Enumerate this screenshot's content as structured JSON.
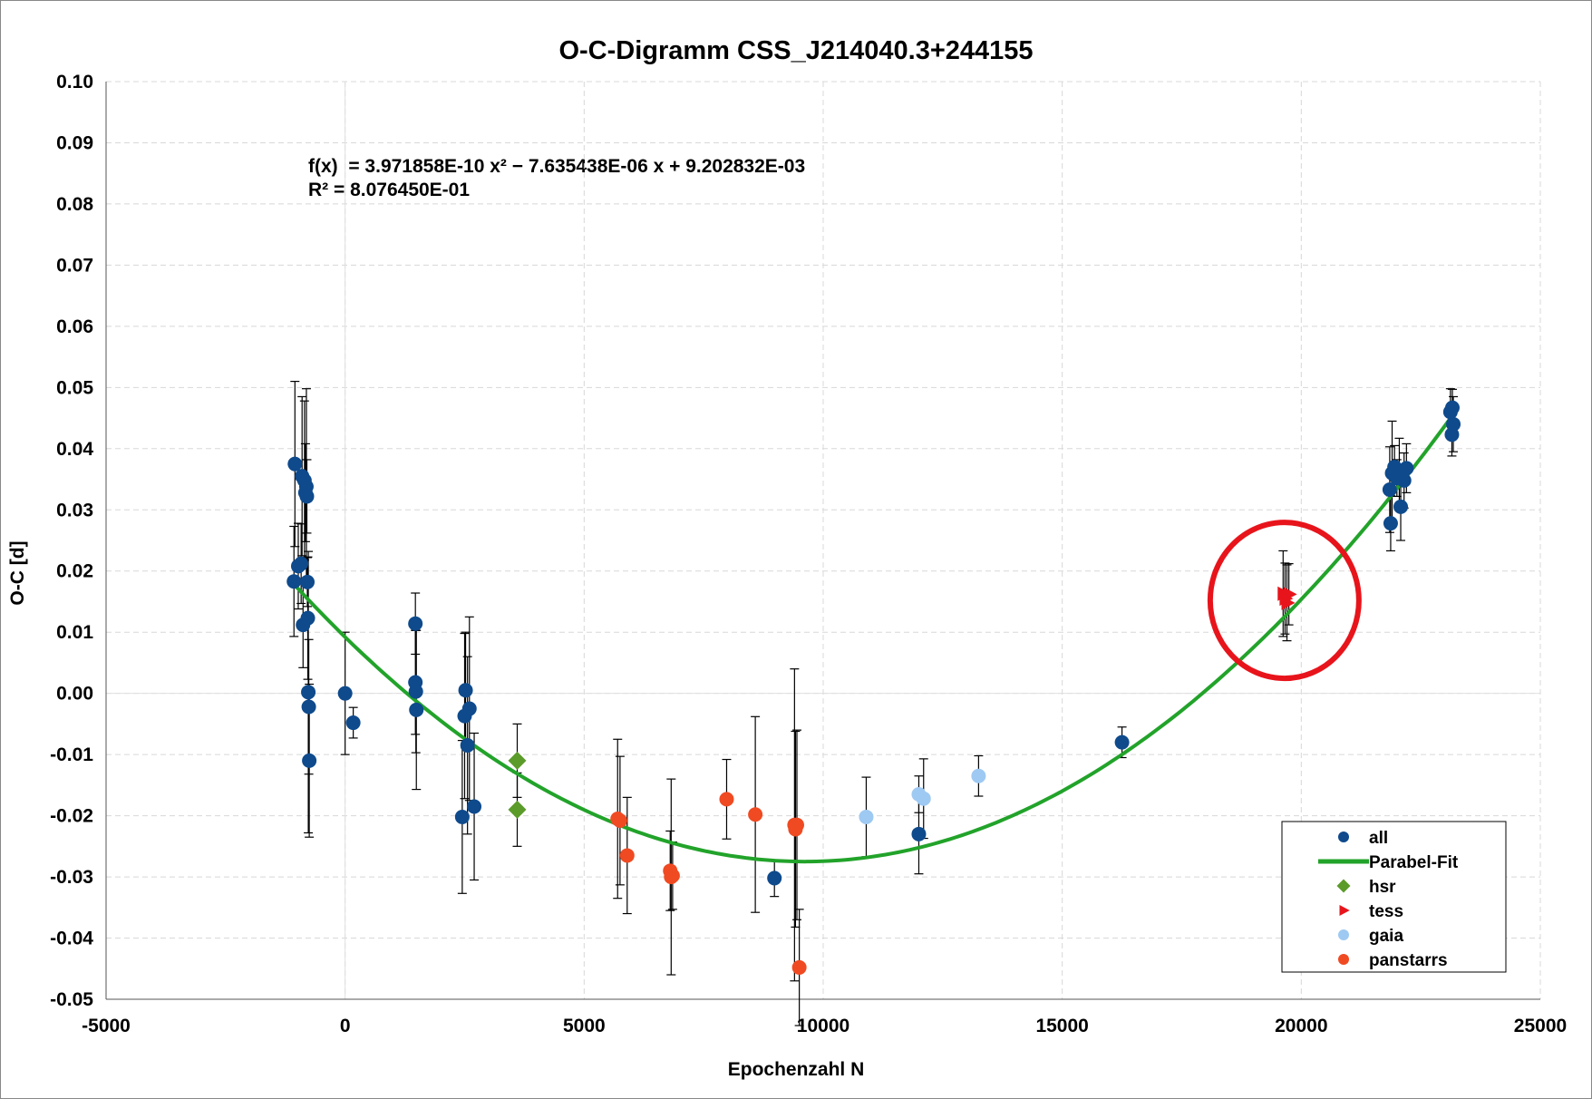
{
  "chart_data": {
    "type": "scatter",
    "title": "O-C-Digramm CSS_J214040.3+244155",
    "xlabel": "Epochenzahl N",
    "ylabel": "O-C [d]",
    "xlim": [
      -5000,
      25000
    ],
    "ylim": [
      -0.05,
      0.1
    ],
    "x_ticks": [
      "-5000",
      "0",
      "5000",
      "10000",
      "15000",
      "20000",
      "25000"
    ],
    "y_ticks": [
      "0.10",
      "0.09",
      "0.08",
      "0.07",
      "0.06",
      "0.05",
      "0.04",
      "0.03",
      "0.02",
      "0.01",
      "0.00",
      "-0.01",
      "-0.02",
      "-0.03",
      "-0.04",
      "-0.05"
    ],
    "grid": true,
    "legend_position": "bottom-right",
    "equation": "f(x)  = 3.971858E-10 x² − 7.635438E-06 x + 9.202832E-03",
    "r_squared": "R² = 8.076450E-01",
    "fit": {
      "name": "Parabel-Fit",
      "a": 3.971858e-10,
      "b": -7.635438e-06,
      "c": 0.009202832,
      "x_range": [
        -1050,
        23200
      ],
      "color": "#22a32a"
    },
    "highlight_circle": {
      "x": 19650,
      "y": 0.0155
    },
    "legend": [
      {
        "label": "all",
        "marker": "circle",
        "color": "#0e4a8c"
      },
      {
        "label": "Parabel-Fit",
        "marker": "line",
        "color": "#22a32a"
      },
      {
        "label": "hsr",
        "marker": "diamond",
        "color": "#5b9b2a"
      },
      {
        "label": "tess",
        "marker": "triangle",
        "color": "#e8141b"
      },
      {
        "label": "gaia",
        "marker": "circle",
        "color": "#9ec9f2"
      },
      {
        "label": "panstarrs",
        "marker": "circle",
        "color": "#f04a22"
      }
    ],
    "series": [
      {
        "name": "all",
        "marker": "circle",
        "color": "#0e4a8c",
        "points": [
          [
            -1050,
            0.0375,
            0.0135
          ],
          [
            -1070,
            0.0183,
            0.009
          ],
          [
            -980,
            0.0208,
            0.007
          ],
          [
            -920,
            0.0212,
            0.0065
          ],
          [
            -900,
            0.0355,
            0.013
          ],
          [
            -880,
            0.0112,
            0.007
          ],
          [
            -850,
            0.0348,
            0.013
          ],
          [
            -830,
            0.0328,
            0.008
          ],
          [
            -810,
            0.0338,
            0.016
          ],
          [
            -800,
            0.0322,
            0.006
          ],
          [
            -790,
            0.0182,
            0.004
          ],
          [
            -780,
            0.0123,
            0.01
          ],
          [
            -770,
            0.0002,
            0.023
          ],
          [
            -760,
            -0.0022,
            0.011
          ],
          [
            -750,
            -0.011,
            0.0125
          ],
          [
            0,
            0.0,
            0.01
          ],
          [
            170,
            -0.0048,
            0.0025
          ],
          [
            1470,
            0.0114,
            0.005
          ],
          [
            1470,
            0.0018,
            0.0085
          ],
          [
            1480,
            0.0003,
            0.01
          ],
          [
            1490,
            -0.0027,
            0.013
          ],
          [
            2450,
            -0.0202,
            0.0125
          ],
          [
            2500,
            -0.0037,
            0.0135
          ],
          [
            2520,
            0.0005,
            0.0095
          ],
          [
            2560,
            -0.0085,
            0.0145
          ],
          [
            2600,
            -0.0025,
            0.015
          ],
          [
            2700,
            -0.0185,
            0.012
          ],
          [
            8980,
            -0.0302,
            0.003
          ],
          [
            12000,
            -0.023,
            0.0065
          ],
          [
            16250,
            -0.008,
            0.0025
          ],
          [
            21850,
            0.0333,
            0.007
          ],
          [
            21870,
            0.0278,
            0.0045
          ],
          [
            21900,
            0.036,
            0.0085
          ],
          [
            21950,
            0.037,
            0.0035
          ],
          [
            22000,
            0.0352,
            0.003
          ],
          [
            22050,
            0.0362,
            0.0055
          ],
          [
            22080,
            0.0305,
            0.0055
          ],
          [
            22150,
            0.0348,
            0.0045
          ],
          [
            22200,
            0.0368,
            0.004
          ],
          [
            23120,
            0.046,
            0.0038
          ],
          [
            23150,
            0.0423,
            0.0035
          ],
          [
            23160,
            0.0467,
            0.003
          ],
          [
            23180,
            0.044,
            0.0045
          ]
        ]
      },
      {
        "name": "hsr",
        "marker": "diamond",
        "color": "#5b9b2a",
        "points": [
          [
            3600,
            -0.011,
            0.006
          ],
          [
            3600,
            -0.019,
            0.006
          ]
        ]
      },
      {
        "name": "tess",
        "marker": "triangle",
        "color": "#e8141b",
        "points": [
          [
            19620,
            0.0163,
            0.007
          ],
          [
            19660,
            0.0155,
            0.0058
          ],
          [
            19700,
            0.0148,
            0.0062
          ],
          [
            19740,
            0.0162,
            0.005
          ]
        ]
      },
      {
        "name": "gaia",
        "marker": "circle",
        "color": "#9ec9f2",
        "points": [
          [
            10900,
            -0.0202,
            0.0065
          ],
          [
            12000,
            -0.0165,
            0.003
          ],
          [
            12100,
            -0.0172,
            0.0065
          ],
          [
            13250,
            -0.0135,
            0.0033
          ]
        ]
      },
      {
        "name": "panstarrs",
        "marker": "circle",
        "color": "#f04a22",
        "points": [
          [
            5700,
            -0.0205,
            0.013
          ],
          [
            5750,
            -0.0208,
            0.0105
          ],
          [
            5900,
            -0.0265,
            0.0095
          ],
          [
            6800,
            -0.029,
            0.0065
          ],
          [
            6820,
            -0.03,
            0.016
          ],
          [
            6850,
            -0.0298,
            0.0055
          ],
          [
            7980,
            -0.0173,
            0.0065
          ],
          [
            8580,
            -0.0198,
            0.016
          ],
          [
            9400,
            -0.0215,
            0.0255
          ],
          [
            9420,
            -0.0222,
            0.016
          ],
          [
            9450,
            -0.0215,
            0.0155
          ],
          [
            9500,
            -0.0448,
            0.0095
          ]
        ]
      }
    ]
  }
}
